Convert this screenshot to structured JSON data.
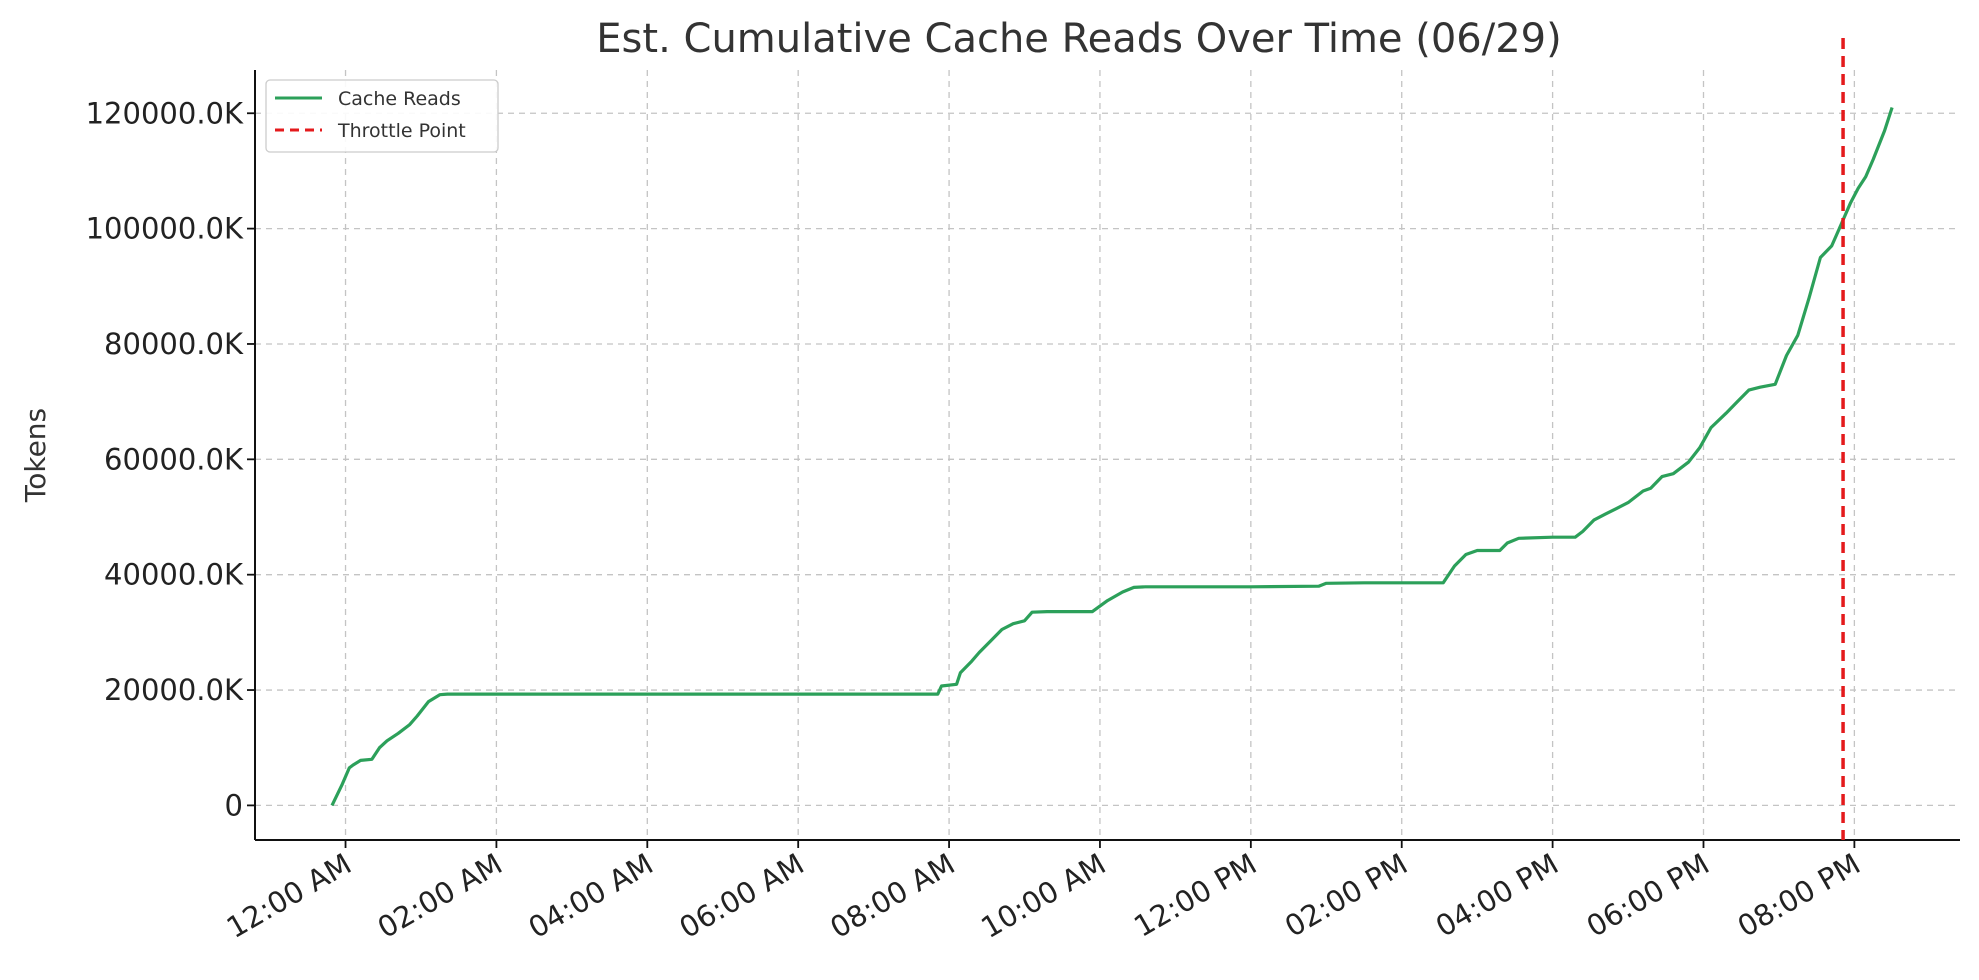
{
  "chart_data": {
    "type": "line",
    "title": "Est. Cumulative Cache Reads Over Time (06/29)",
    "xlabel": "",
    "ylabel": "Tokens",
    "x_unit": "hours since 12:00 AM (06/29)",
    "xlim": [
      -1.2,
      21.4
    ],
    "ylim": [
      -6000,
      127500
    ],
    "x_ticks": [
      {
        "value": 0,
        "label": "12:00 AM"
      },
      {
        "value": 2,
        "label": "02:00 AM"
      },
      {
        "value": 4,
        "label": "04:00 AM"
      },
      {
        "value": 6,
        "label": "06:00 AM"
      },
      {
        "value": 8,
        "label": "08:00 AM"
      },
      {
        "value": 10,
        "label": "10:00 AM"
      },
      {
        "value": 12,
        "label": "12:00 PM"
      },
      {
        "value": 14,
        "label": "02:00 PM"
      },
      {
        "value": 16,
        "label": "04:00 PM"
      },
      {
        "value": 18,
        "label": "06:00 PM"
      },
      {
        "value": 20,
        "label": "08:00 PM"
      }
    ],
    "y_ticks": [
      {
        "value": 0,
        "label": "0"
      },
      {
        "value": 20000,
        "label": "20000.0K"
      },
      {
        "value": 40000,
        "label": "40000.0K"
      },
      {
        "value": 60000,
        "label": "60000.0K"
      },
      {
        "value": 80000,
        "label": "80000.0K"
      },
      {
        "value": 100000,
        "label": "100000.0K"
      },
      {
        "value": 120000,
        "label": "120000.0K"
      }
    ],
    "grid": true,
    "legend_position": "top-left",
    "series": [
      {
        "name": "Cache Reads",
        "color": "#2ca05a",
        "style": "solid",
        "x": [
          -0.18,
          -0.05,
          0.05,
          0.1,
          0.2,
          0.35,
          0.45,
          0.55,
          0.7,
          0.85,
          0.95,
          1.1,
          1.25,
          1.35,
          1.5,
          1.65,
          1.75,
          3,
          5,
          7.5,
          7.85,
          7.9,
          8.1,
          8.15,
          8.3,
          8.4,
          8.55,
          8.7,
          8.85,
          9.0,
          9.1,
          9.3,
          9.5,
          9.9,
          10.1,
          10.3,
          10.45,
          10.6,
          12,
          12.9,
          13.0,
          13.5,
          14.0,
          14.55,
          14.7,
          14.85,
          15.0,
          15.3,
          15.4,
          15.55,
          16.0,
          16.3,
          16.4,
          16.55,
          16.7,
          16.85,
          17.0,
          17.2,
          17.3,
          17.45,
          17.6,
          17.8,
          17.95,
          18.1,
          18.3,
          18.45,
          18.6,
          18.75,
          18.95,
          19.1,
          19.25,
          19.4,
          19.55,
          19.7,
          19.8,
          19.95,
          20.05,
          20.15,
          20.25,
          20.4,
          20.5
        ],
        "y": [
          0,
          3500,
          6500,
          7000,
          7800,
          8000,
          10000,
          11200,
          12500,
          14000,
          15500,
          18000,
          19200,
          19300,
          19300,
          19300,
          19300,
          19300,
          19300,
          19300,
          19300,
          20700,
          21000,
          23000,
          25000,
          26500,
          28500,
          30500,
          31500,
          32000,
          33500,
          33600,
          33600,
          33600,
          35500,
          37000,
          37800,
          37900,
          37900,
          38000,
          38500,
          38600,
          38600,
          38600,
          41500,
          43500,
          44200,
          44200,
          45500,
          46300,
          46500,
          46500,
          47500,
          49500,
          50500,
          51500,
          52500,
          54500,
          55000,
          57000,
          57500,
          59500,
          62000,
          65500,
          68000,
          70000,
          72000,
          72500,
          73000,
          78000,
          81500,
          88000,
          95000,
          97000,
          100000,
          104500,
          107000,
          109000,
          112000,
          117000,
          121000
        ]
      },
      {
        "name": "Throttle Point",
        "color": "#e41a1c",
        "style": "dashed",
        "vline_x": 19.85
      }
    ]
  }
}
